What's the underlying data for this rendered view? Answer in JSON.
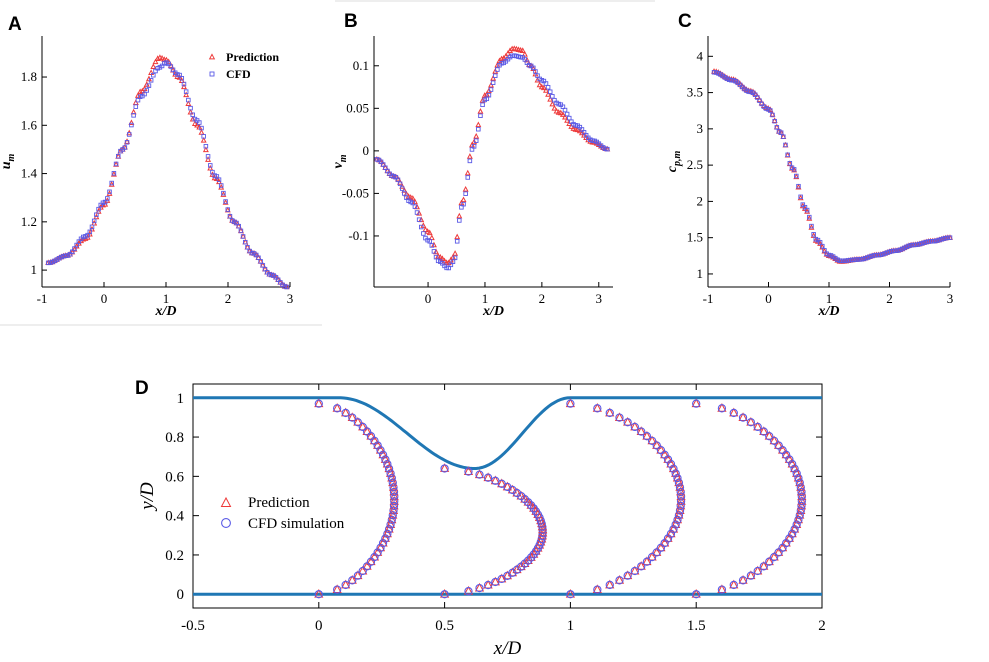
{
  "panels": {
    "a": {
      "label": "A"
    },
    "b": {
      "label": "B"
    },
    "c": {
      "label": "C"
    },
    "d": {
      "label": "D"
    }
  },
  "colors": {
    "prediction": "#ee3a3a",
    "cfd": "#5a5ae6",
    "wall": "#1f77b4"
  },
  "chart_data": [
    {
      "id": "A",
      "type": "line",
      "xlabel": "x/D",
      "ylabel": "u",
      "ylabel_sub": "m",
      "xlim": [
        -1,
        3
      ],
      "ylim": [
        0.93,
        1.97
      ],
      "xticks": [
        -1,
        0,
        1,
        2,
        3
      ],
      "xtick_labels": [
        "-1",
        "0",
        "1",
        "2",
        "3"
      ],
      "yticks": [
        1,
        1.2,
        1.4,
        1.6,
        1.8
      ],
      "ytick_labels": [
        "1",
        "1.2",
        "1.4",
        "1.6",
        "1.8"
      ],
      "legend": [
        "Prediction",
        "CFD"
      ],
      "legend_position": "top-right",
      "series": [
        {
          "name": "Prediction",
          "marker": "triangle",
          "points": [
            [
              -0.9,
              1.03
            ],
            [
              -0.6,
              1.06
            ],
            [
              -0.3,
              1.13
            ],
            [
              0,
              1.27
            ],
            [
              0.3,
              1.5
            ],
            [
              0.6,
              1.74
            ],
            [
              0.9,
              1.88
            ],
            [
              1.0,
              1.87
            ],
            [
              1.2,
              1.8
            ],
            [
              1.5,
              1.6
            ],
            [
              1.8,
              1.38
            ],
            [
              2.1,
              1.2
            ],
            [
              2.4,
              1.07
            ],
            [
              2.7,
              0.98
            ],
            [
              2.95,
              0.93
            ]
          ]
        },
        {
          "name": "CFD",
          "marker": "square",
          "points": [
            [
              -0.9,
              1.03
            ],
            [
              -0.6,
              1.06
            ],
            [
              -0.3,
              1.14
            ],
            [
              0,
              1.28
            ],
            [
              0.3,
              1.5
            ],
            [
              0.6,
              1.72
            ],
            [
              0.9,
              1.84
            ],
            [
              1.0,
              1.86
            ],
            [
              1.2,
              1.81
            ],
            [
              1.5,
              1.62
            ],
            [
              1.8,
              1.39
            ],
            [
              2.1,
              1.2
            ],
            [
              2.4,
              1.07
            ],
            [
              2.7,
              0.98
            ],
            [
              2.95,
              0.93
            ]
          ]
        }
      ]
    },
    {
      "id": "B",
      "type": "line",
      "xlabel": "x/D",
      "ylabel": "v",
      "ylabel_sub": "m",
      "xlim": [
        -0.95,
        3.25
      ],
      "ylim": [
        -0.16,
        0.135
      ],
      "xticks": [
        0,
        1,
        2,
        3
      ],
      "xtick_labels": [
        "0",
        "1",
        "2",
        "3"
      ],
      "yticks": [
        -0.1,
        -0.05,
        0,
        0.05,
        0.1
      ],
      "ytick_labels": [
        "-0.1",
        "-0.05",
        "0",
        "0.05",
        "0.1"
      ],
      "series": [
        {
          "name": "Prediction",
          "marker": "triangle",
          "points": [
            [
              -0.9,
              -0.01
            ],
            [
              -0.6,
              -0.03
            ],
            [
              -0.3,
              -0.055
            ],
            [
              0,
              -0.095
            ],
            [
              0.2,
              -0.125
            ],
            [
              0.35,
              -0.132
            ],
            [
              0.45,
              -0.125
            ],
            [
              0.6,
              -0.06
            ],
            [
              0.8,
              0.01
            ],
            [
              1.0,
              0.065
            ],
            [
              1.3,
              0.108
            ],
            [
              1.5,
              0.12
            ],
            [
              1.65,
              0.118
            ],
            [
              1.8,
              0.1
            ],
            [
              2.0,
              0.075
            ],
            [
              2.3,
              0.045
            ],
            [
              2.6,
              0.025
            ],
            [
              2.9,
              0.01
            ],
            [
              3.15,
              0.002
            ]
          ]
        },
        {
          "name": "CFD",
          "marker": "square",
          "points": [
            [
              -0.9,
              -0.01
            ],
            [
              -0.6,
              -0.03
            ],
            [
              -0.3,
              -0.06
            ],
            [
              0,
              -0.105
            ],
            [
              0.2,
              -0.13
            ],
            [
              0.35,
              -0.138
            ],
            [
              0.45,
              -0.13
            ],
            [
              0.6,
              -0.065
            ],
            [
              0.8,
              0.005
            ],
            [
              1.0,
              0.06
            ],
            [
              1.3,
              0.103
            ],
            [
              1.5,
              0.112
            ],
            [
              1.65,
              0.11
            ],
            [
              1.8,
              0.1
            ],
            [
              2.0,
              0.083
            ],
            [
              2.3,
              0.055
            ],
            [
              2.6,
              0.03
            ],
            [
              2.9,
              0.012
            ],
            [
              3.15,
              0.002
            ]
          ]
        }
      ]
    },
    {
      "id": "C",
      "type": "line",
      "xlabel": "x/D",
      "ylabel": "c",
      "ylabel_sub": "p,m",
      "xlim": [
        -1,
        3
      ],
      "ylim": [
        0.82,
        4.28
      ],
      "xticks": [
        -1,
        0,
        1,
        2,
        3
      ],
      "xtick_labels": [
        "-1",
        "0",
        "1",
        "2",
        "3"
      ],
      "yticks": [
        1,
        1.5,
        2,
        2.5,
        3,
        3.5,
        4
      ],
      "ytick_labels": [
        "1",
        "1.5",
        "2",
        "2.5",
        "3",
        "3.5",
        "4"
      ],
      "series": [
        {
          "name": "Prediction",
          "marker": "triangle",
          "points": [
            [
              -0.9,
              3.79
            ],
            [
              -0.6,
              3.68
            ],
            [
              -0.3,
              3.52
            ],
            [
              0,
              3.28
            ],
            [
              0.2,
              2.95
            ],
            [
              0.4,
              2.45
            ],
            [
              0.6,
              1.9
            ],
            [
              0.8,
              1.45
            ],
            [
              1.0,
              1.25
            ],
            [
              1.2,
              1.17
            ],
            [
              1.5,
              1.2
            ],
            [
              1.8,
              1.26
            ],
            [
              2.1,
              1.32
            ],
            [
              2.4,
              1.4
            ],
            [
              2.7,
              1.45
            ],
            [
              3.0,
              1.5
            ]
          ]
        },
        {
          "name": "CFD",
          "marker": "square",
          "points": [
            [
              -0.9,
              3.78
            ],
            [
              -0.6,
              3.67
            ],
            [
              -0.3,
              3.51
            ],
            [
              0,
              3.27
            ],
            [
              0.2,
              2.95
            ],
            [
              0.4,
              2.46
            ],
            [
              0.6,
              1.92
            ],
            [
              0.8,
              1.47
            ],
            [
              1.0,
              1.26
            ],
            [
              1.2,
              1.18
            ],
            [
              1.5,
              1.2
            ],
            [
              1.8,
              1.26
            ],
            [
              2.1,
              1.32
            ],
            [
              2.4,
              1.4
            ],
            [
              2.7,
              1.45
            ],
            [
              3.0,
              1.5
            ]
          ]
        }
      ]
    },
    {
      "id": "D",
      "type": "line",
      "xlabel": "x/D",
      "ylabel": "y/D",
      "xlim": [
        -0.5,
        2
      ],
      "ylim": [
        -0.07,
        1.07
      ],
      "xticks": [
        -0.5,
        0,
        0.5,
        1,
        1.5,
        2
      ],
      "xtick_labels": [
        "-0.5",
        "0",
        "0.5",
        "1",
        "1.5",
        "2"
      ],
      "yticks": [
        0,
        0.2,
        0.4,
        0.6,
        0.8,
        1
      ],
      "ytick_labels": [
        "0",
        "0.2",
        "0.4",
        "0.6",
        "0.8",
        "1"
      ],
      "legend": [
        "Prediction",
        "CFD simulation"
      ],
      "legend_position": "middle-left",
      "walls": {
        "top": 1,
        "bottom": 0,
        "constriction_center": 0.62,
        "constriction_min": 0.64,
        "constriction_x_range": [
          0.08,
          1.0
        ]
      },
      "profiles": [
        {
          "x_station": 0,
          "y_range": [
            0,
            0.97
          ],
          "peak_offset": 0.3
        },
        {
          "x_station": 0.5,
          "y_range": [
            0,
            0.64
          ],
          "peak_offset": 0.39
        },
        {
          "x_station": 1,
          "y_range": [
            0,
            0.97
          ],
          "peak_offset": 0.44
        },
        {
          "x_station": 1.5,
          "y_range": [
            0,
            0.97
          ],
          "peak_offset": 0.42
        }
      ]
    }
  ]
}
